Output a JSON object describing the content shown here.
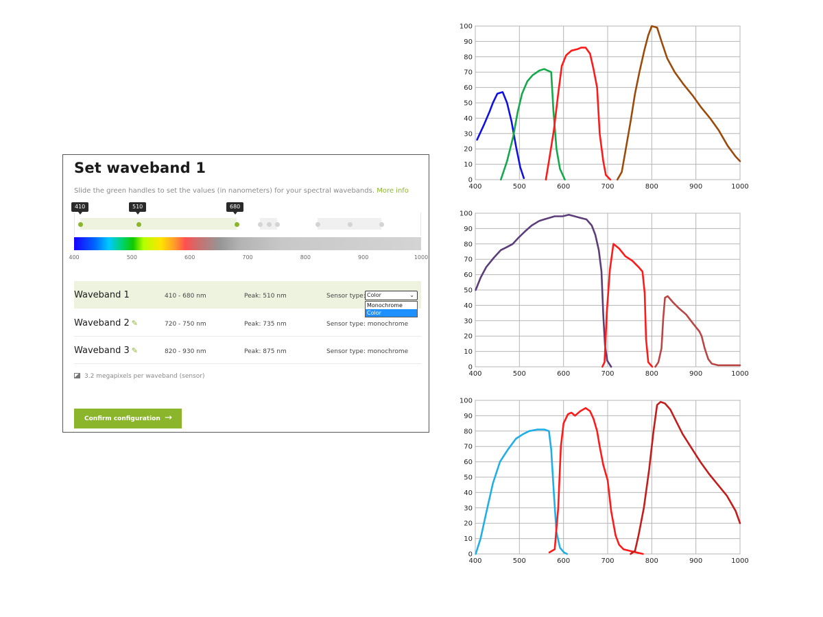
{
  "panel": {
    "title": "Set waveband 1",
    "description": "Slide the green handles to set the values (in nanometers) for your spectral wavebands.",
    "more_info": "More info",
    "tags": [
      "410",
      "510",
      "680"
    ],
    "axis_labels": [
      "400",
      "500",
      "600",
      "700",
      "800",
      "900",
      "1000"
    ],
    "slider": {
      "min": 400,
      "max": 1000,
      "active_handles": [
        410,
        510,
        680
      ],
      "inactive_handles": [
        720,
        735,
        750,
        820,
        875,
        930
      ]
    },
    "wavebands": [
      {
        "name": "Waveband 1",
        "range": "410 - 680 nm",
        "peak": "Peak: 510 nm",
        "sensor_label": "Sensor type:",
        "sensor": "Color",
        "active": true
      },
      {
        "name": "Waveband 2",
        "range": "720 - 750 nm",
        "peak": "Peak: 735 nm",
        "sensor_label": "Sensor type: monochrome",
        "active": false
      },
      {
        "name": "Waveband 3",
        "range": "820 - 930 nm",
        "peak": "Peak: 875 nm",
        "sensor_label": "Sensor type: monochrome",
        "active": false
      }
    ],
    "sensor_dropdown": {
      "selected": "Color",
      "options": [
        "Monochrome",
        "Color"
      ]
    },
    "megapixels": "3.2 megapixels per waveband (sensor)",
    "confirm_label": "Confirm configuration",
    "confirm_arrow": "→",
    "pencil_glyph": "✎",
    "chevron_glyph": "⌄",
    "accent_color": "#8bb62c"
  },
  "chart_data": [
    {
      "type": "line",
      "title": "",
      "xlabel": "",
      "ylabel": "",
      "xlim": [
        400,
        1000
      ],
      "ylim": [
        0,
        100
      ],
      "x_ticks": [
        400,
        500,
        600,
        700,
        800,
        900,
        1000
      ],
      "y_ticks": [
        0,
        10,
        20,
        30,
        40,
        50,
        60,
        70,
        80,
        90,
        100
      ],
      "grid": true,
      "series": [
        {
          "color": "#1010e0",
          "points": [
            [
              404,
              26
            ],
            [
              420,
              36
            ],
            [
              432,
              44
            ],
            [
              440,
              50
            ],
            [
              450,
              56
            ],
            [
              462,
              57
            ],
            [
              472,
              50
            ],
            [
              482,
              38
            ],
            [
              492,
              22
            ],
            [
              502,
              8
            ],
            [
              510,
              1
            ]
          ]
        },
        {
          "color": "#13a84a",
          "points": [
            [
              458,
              0
            ],
            [
              472,
              12
            ],
            [
              486,
              28
            ],
            [
              496,
              44
            ],
            [
              506,
              56
            ],
            [
              518,
              64
            ],
            [
              530,
              68
            ],
            [
              545,
              71
            ],
            [
              556,
              72
            ],
            [
              572,
              70
            ],
            [
              577,
              45
            ],
            [
              584,
              20
            ],
            [
              592,
              7
            ],
            [
              603,
              0
            ]
          ]
        },
        {
          "color": "#ff1a1a",
          "points": [
            [
              560,
              0
            ],
            [
              568,
              14
            ],
            [
              578,
              32
            ],
            [
              588,
              56
            ],
            [
              596,
              74
            ],
            [
              606,
              81
            ],
            [
              618,
              84
            ],
            [
              632,
              85
            ],
            [
              640,
              86
            ],
            [
              650,
              86
            ],
            [
              660,
              82
            ],
            [
              668,
              72
            ],
            [
              676,
              60
            ],
            [
              682,
              30
            ],
            [
              690,
              12
            ],
            [
              696,
              3
            ],
            [
              706,
              0
            ]
          ]
        },
        {
          "color": "#9c4a0a",
          "points": [
            [
              722,
              0
            ],
            [
              732,
              5
            ],
            [
              740,
              18
            ],
            [
              752,
              38
            ],
            [
              762,
              56
            ],
            [
              772,
              70
            ],
            [
              783,
              84
            ],
            [
              792,
              94
            ],
            [
              800,
              100
            ],
            [
              812,
              99
            ],
            [
              822,
              90
            ],
            [
              835,
              79
            ],
            [
              852,
              70
            ],
            [
              872,
              62
            ],
            [
              892,
              55
            ],
            [
              912,
              47
            ],
            [
              932,
              40
            ],
            [
              952,
              32
            ],
            [
              972,
              22
            ],
            [
              990,
              15
            ],
            [
              1000,
              12
            ]
          ]
        }
      ]
    },
    {
      "type": "line",
      "title": "",
      "xlabel": "",
      "ylabel": "",
      "xlim": [
        400,
        1000
      ],
      "ylim": [
        0,
        100
      ],
      "x_ticks": [
        400,
        500,
        600,
        700,
        800,
        900,
        1000
      ],
      "y_ticks": [
        0,
        10,
        20,
        30,
        40,
        50,
        60,
        70,
        80,
        90,
        100
      ],
      "grid": true,
      "series": [
        {
          "color": "#5c3d7a",
          "points": [
            [
              401,
              50
            ],
            [
              412,
              58
            ],
            [
              425,
              65
            ],
            [
              442,
              71
            ],
            [
              458,
              76
            ],
            [
              472,
              78
            ],
            [
              485,
              80
            ],
            [
              498,
              84
            ],
            [
              512,
              88
            ],
            [
              528,
              92
            ],
            [
              545,
              95
            ],
            [
              556,
              96
            ],
            [
              568,
              97
            ],
            [
              580,
              98
            ],
            [
              598,
              98
            ],
            [
              612,
              99
            ],
            [
              625,
              98
            ],
            [
              638,
              97
            ],
            [
              652,
              96
            ],
            [
              664,
              92
            ],
            [
              672,
              86
            ],
            [
              680,
              76
            ],
            [
              686,
              62
            ],
            [
              690,
              34
            ],
            [
              694,
              14
            ],
            [
              699,
              4
            ],
            [
              708,
              0
            ]
          ]
        },
        {
          "color": "#ff1a1a",
          "points": [
            [
              688,
              0
            ],
            [
              693,
              3
            ],
            [
              698,
              35
            ],
            [
              705,
              63
            ],
            [
              713,
              80
            ],
            [
              726,
              77
            ],
            [
              740,
              72
            ],
            [
              756,
              69
            ],
            [
              770,
              65
            ],
            [
              779,
              62
            ],
            [
              784,
              48
            ],
            [
              787,
              18
            ],
            [
              792,
              3
            ],
            [
              801,
              0
            ]
          ]
        },
        {
          "color": "#bb4444",
          "points": [
            [
              808,
              0
            ],
            [
              815,
              3
            ],
            [
              822,
              12
            ],
            [
              826,
              32
            ],
            [
              830,
              45
            ],
            [
              836,
              46
            ],
            [
              848,
              42
            ],
            [
              862,
              38
            ],
            [
              878,
              34
            ],
            [
              894,
              28
            ],
            [
              908,
              23
            ],
            [
              913,
              20
            ],
            [
              920,
              12
            ],
            [
              928,
              5
            ],
            [
              936,
              2
            ],
            [
              950,
              1
            ],
            [
              1000,
              1
            ]
          ]
        }
      ]
    },
    {
      "type": "line",
      "title": "",
      "xlabel": "",
      "ylabel": "",
      "xlim": [
        400,
        1000
      ],
      "ylim": [
        0,
        100
      ],
      "x_ticks": [
        400,
        500,
        600,
        700,
        800,
        900,
        1000
      ],
      "y_ticks": [
        0,
        10,
        20,
        30,
        40,
        50,
        60,
        70,
        80,
        90,
        100
      ],
      "grid": true,
      "series": [
        {
          "color": "#1faee6",
          "points": [
            [
              401,
              0
            ],
            [
              412,
              10
            ],
            [
              425,
              27
            ],
            [
              440,
              46
            ],
            [
              456,
              60
            ],
            [
              474,
              68
            ],
            [
              492,
              75
            ],
            [
              508,
              78
            ],
            [
              522,
              80
            ],
            [
              540,
              81
            ],
            [
              557,
              81
            ],
            [
              567,
              80
            ],
            [
              572,
              68
            ],
            [
              578,
              40
            ],
            [
              584,
              14
            ],
            [
              592,
              4
            ],
            [
              601,
              1
            ],
            [
              608,
              0
            ]
          ]
        },
        {
          "color": "#ff1a1a",
          "points": [
            [
              568,
              1
            ],
            [
              580,
              3
            ],
            [
              588,
              30
            ],
            [
              594,
              70
            ],
            [
              600,
              85
            ],
            [
              610,
              91
            ],
            [
              618,
              92
            ],
            [
              626,
              90
            ],
            [
              638,
              93
            ],
            [
              650,
              95
            ],
            [
              660,
              93
            ],
            [
              668,
              88
            ],
            [
              676,
              80
            ],
            [
              682,
              70
            ],
            [
              690,
              58
            ],
            [
              700,
              48
            ],
            [
              708,
              28
            ],
            [
              718,
              12
            ],
            [
              726,
              6
            ],
            [
              736,
              3
            ],
            [
              750,
              2
            ],
            [
              765,
              1
            ],
            [
              780,
              0
            ]
          ]
        },
        {
          "color": "#c41b1b",
          "points": [
            [
              752,
              0
            ],
            [
              762,
              2
            ],
            [
              770,
              12
            ],
            [
              782,
              30
            ],
            [
              794,
              55
            ],
            [
              804,
              80
            ],
            [
              812,
              97
            ],
            [
              820,
              99
            ],
            [
              830,
              98
            ],
            [
              842,
              94
            ],
            [
              856,
              86
            ],
            [
              870,
              78
            ],
            [
              890,
              69
            ],
            [
              910,
              60
            ],
            [
              930,
              52
            ],
            [
              950,
              45
            ],
            [
              970,
              38
            ],
            [
              990,
              28
            ],
            [
              1000,
              20
            ]
          ]
        }
      ]
    }
  ]
}
